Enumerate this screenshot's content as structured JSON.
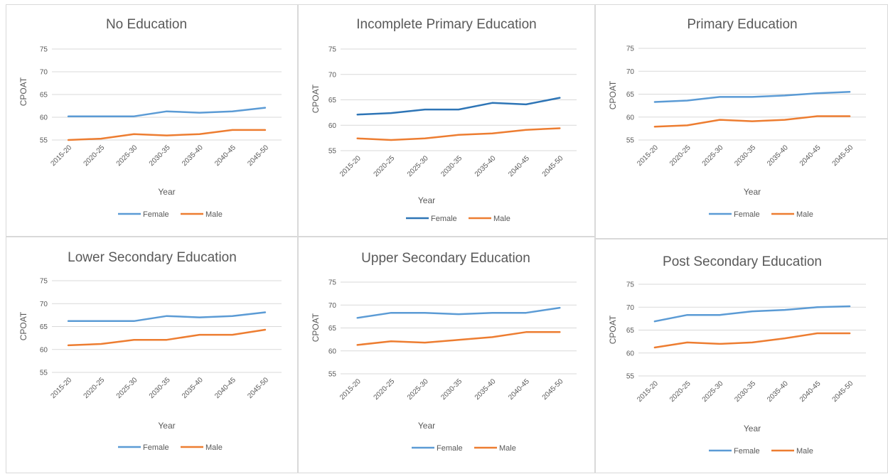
{
  "chart_data": [
    {
      "type": "line",
      "title": "No Education",
      "xlabel": "Year",
      "ylabel": "CPOAT",
      "ylim": [
        55,
        75
      ],
      "yticks": [
        55,
        60,
        65,
        70,
        75
      ],
      "categories": [
        "2015-20",
        "2020-25",
        "2025-30",
        "2030-35",
        "2035-40",
        "2040-45",
        "2045-50"
      ],
      "series": [
        {
          "name": "Female",
          "color": "#5b9bd5",
          "values": [
            60.2,
            60.2,
            60.2,
            61.3,
            61.0,
            61.3,
            62.1
          ]
        },
        {
          "name": "Male",
          "color": "#ed7d31",
          "values": [
            55.0,
            55.3,
            56.3,
            56.0,
            56.3,
            57.2,
            57.2
          ]
        }
      ],
      "legend": "bottom",
      "grid": true
    },
    {
      "type": "line",
      "title": "Incomplete Primary Education",
      "xlabel": "Year",
      "ylabel": "CPOAT",
      "ylim": [
        55,
        75
      ],
      "yticks": [
        55,
        60,
        65,
        70,
        75
      ],
      "categories": [
        "2015-20",
        "2020-25",
        "2025-30",
        "2030-35",
        "2035-40",
        "2040-45",
        "2045-50"
      ],
      "series": [
        {
          "name": "Female",
          "color": "#2e75b6",
          "values": [
            62.1,
            62.4,
            63.1,
            63.1,
            64.4,
            64.1,
            65.4
          ]
        },
        {
          "name": "Male",
          "color": "#ed7d31",
          "values": [
            57.4,
            57.1,
            57.4,
            58.1,
            58.4,
            59.1,
            59.4
          ]
        }
      ],
      "legend": "bottom",
      "grid": true
    },
    {
      "type": "line",
      "title": "Primary Education",
      "xlabel": "Year",
      "ylabel": "CPOAT",
      "ylim": [
        55,
        75
      ],
      "yticks": [
        55,
        60,
        65,
        70,
        75
      ],
      "categories": [
        "2015-20",
        "2020-25",
        "2025-30",
        "2030-35",
        "2035-40",
        "2040-45",
        "2045-50"
      ],
      "series": [
        {
          "name": "Female",
          "color": "#5b9bd5",
          "values": [
            63.3,
            63.6,
            64.4,
            64.4,
            64.7,
            65.2,
            65.5
          ]
        },
        {
          "name": "Male",
          "color": "#ed7d31",
          "values": [
            57.9,
            58.2,
            59.4,
            59.1,
            59.4,
            60.2,
            60.2
          ]
        }
      ],
      "legend": "bottom",
      "grid": true
    },
    {
      "type": "line",
      "title": "Lower Secondary Education",
      "xlabel": "Year",
      "ylabel": "CPOAT",
      "ylim": [
        55,
        75
      ],
      "yticks": [
        55,
        60,
        65,
        70,
        75
      ],
      "categories": [
        "2015-20",
        "2020-25",
        "2025-30",
        "2030-35",
        "2035-40",
        "2040-45",
        "2045-50"
      ],
      "series": [
        {
          "name": "Female",
          "color": "#5b9bd5",
          "values": [
            66.2,
            66.2,
            66.2,
            67.3,
            67.0,
            67.3,
            68.1
          ]
        },
        {
          "name": "Male",
          "color": "#ed7d31",
          "values": [
            60.9,
            61.2,
            62.1,
            62.1,
            63.2,
            63.2,
            64.3
          ]
        }
      ],
      "legend": "bottom",
      "grid": true
    },
    {
      "type": "line",
      "title": "Upper Secondary Education",
      "xlabel": "Year",
      "ylabel": "CPOAT",
      "ylim": [
        55,
        75
      ],
      "yticks": [
        55,
        60,
        65,
        70,
        75
      ],
      "categories": [
        "2015-20",
        "2020-25",
        "2025-30",
        "2030-35",
        "2035-40",
        "2040-45",
        "2045-50"
      ],
      "series": [
        {
          "name": "Female",
          "color": "#5b9bd5",
          "values": [
            67.2,
            68.3,
            68.3,
            68.0,
            68.3,
            68.3,
            69.4
          ]
        },
        {
          "name": "Male",
          "color": "#ed7d31",
          "values": [
            61.3,
            62.1,
            61.8,
            62.4,
            63.0,
            64.1,
            64.1
          ]
        }
      ],
      "legend": "bottom",
      "grid": true
    },
    {
      "type": "line",
      "title": "Post Secondary Education",
      "xlabel": "Year",
      "ylabel": "CPOAT",
      "ylim": [
        55,
        75
      ],
      "yticks": [
        55,
        60,
        65,
        70,
        75
      ],
      "categories": [
        "2015-20",
        "2020-25",
        "2025-30",
        "2030-35",
        "2035-40",
        "2040-45",
        "2045-50"
      ],
      "series": [
        {
          "name": "Female",
          "color": "#5b9bd5",
          "values": [
            66.9,
            68.3,
            68.3,
            69.1,
            69.4,
            70.0,
            70.2
          ]
        },
        {
          "name": "Male",
          "color": "#ed7d31",
          "values": [
            61.2,
            62.3,
            62.0,
            62.3,
            63.2,
            64.3,
            64.3
          ]
        }
      ],
      "legend": "bottom",
      "grid": true
    }
  ],
  "colors": {
    "grid": "#d9d9d9",
    "text": "#595959"
  }
}
